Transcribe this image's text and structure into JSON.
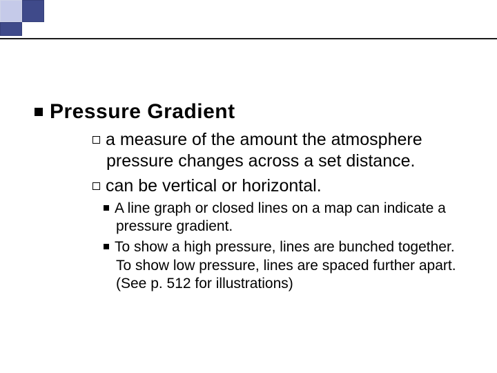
{
  "decoration": {
    "light_color": "#c5cae9",
    "dark_color": "#3f4a8a",
    "line_color": "#1a1a1a"
  },
  "slide": {
    "title": "Pressure Gradient",
    "sub1": "a measure of the amount the atmosphere pressure changes across a set distance.",
    "sub2": "can be vertical or horizontal.",
    "subsub1": "A line graph or closed lines on a map can indicate a pressure gradient.",
    "subsub2": "To show a high pressure, lines are bunched together. To show low pressure, lines are spaced further apart. (See p. 512 for illustrations)"
  }
}
